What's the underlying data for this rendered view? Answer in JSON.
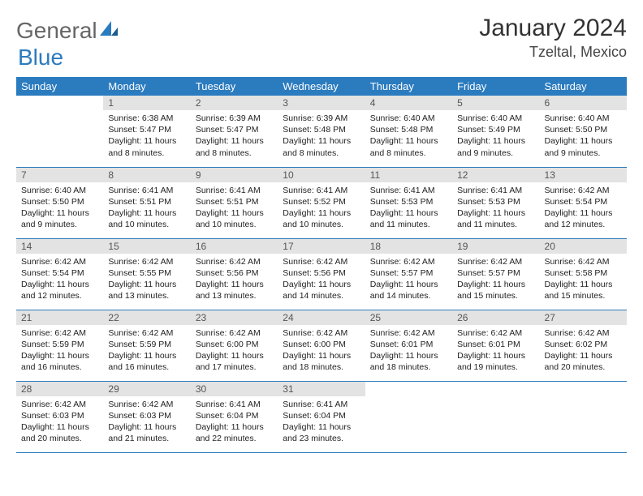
{
  "brand": {
    "part1": "General",
    "part2": "Blue"
  },
  "title": "January 2024",
  "location": "Tzeltal, Mexico",
  "colors": {
    "header_bg": "#2b7bbf",
    "header_text": "#ffffff",
    "daynum_bg": "#e3e3e3",
    "border": "#2b7bbf",
    "text": "#222222",
    "background": "#ffffff"
  },
  "layout": {
    "columns": 7,
    "rows": 5,
    "start_offset": 1
  },
  "weekdays": [
    "Sunday",
    "Monday",
    "Tuesday",
    "Wednesday",
    "Thursday",
    "Friday",
    "Saturday"
  ],
  "days": [
    {
      "n": 1,
      "sr": "6:38 AM",
      "ss": "5:47 PM",
      "dl": "11 hours and 8 minutes."
    },
    {
      "n": 2,
      "sr": "6:39 AM",
      "ss": "5:47 PM",
      "dl": "11 hours and 8 minutes."
    },
    {
      "n": 3,
      "sr": "6:39 AM",
      "ss": "5:48 PM",
      "dl": "11 hours and 8 minutes."
    },
    {
      "n": 4,
      "sr": "6:40 AM",
      "ss": "5:48 PM",
      "dl": "11 hours and 8 minutes."
    },
    {
      "n": 5,
      "sr": "6:40 AM",
      "ss": "5:49 PM",
      "dl": "11 hours and 9 minutes."
    },
    {
      "n": 6,
      "sr": "6:40 AM",
      "ss": "5:50 PM",
      "dl": "11 hours and 9 minutes."
    },
    {
      "n": 7,
      "sr": "6:40 AM",
      "ss": "5:50 PM",
      "dl": "11 hours and 9 minutes."
    },
    {
      "n": 8,
      "sr": "6:41 AM",
      "ss": "5:51 PM",
      "dl": "11 hours and 10 minutes."
    },
    {
      "n": 9,
      "sr": "6:41 AM",
      "ss": "5:51 PM",
      "dl": "11 hours and 10 minutes."
    },
    {
      "n": 10,
      "sr": "6:41 AM",
      "ss": "5:52 PM",
      "dl": "11 hours and 10 minutes."
    },
    {
      "n": 11,
      "sr": "6:41 AM",
      "ss": "5:53 PM",
      "dl": "11 hours and 11 minutes."
    },
    {
      "n": 12,
      "sr": "6:41 AM",
      "ss": "5:53 PM",
      "dl": "11 hours and 11 minutes."
    },
    {
      "n": 13,
      "sr": "6:42 AM",
      "ss": "5:54 PM",
      "dl": "11 hours and 12 minutes."
    },
    {
      "n": 14,
      "sr": "6:42 AM",
      "ss": "5:54 PM",
      "dl": "11 hours and 12 minutes."
    },
    {
      "n": 15,
      "sr": "6:42 AM",
      "ss": "5:55 PM",
      "dl": "11 hours and 13 minutes."
    },
    {
      "n": 16,
      "sr": "6:42 AM",
      "ss": "5:56 PM",
      "dl": "11 hours and 13 minutes."
    },
    {
      "n": 17,
      "sr": "6:42 AM",
      "ss": "5:56 PM",
      "dl": "11 hours and 14 minutes."
    },
    {
      "n": 18,
      "sr": "6:42 AM",
      "ss": "5:57 PM",
      "dl": "11 hours and 14 minutes."
    },
    {
      "n": 19,
      "sr": "6:42 AM",
      "ss": "5:57 PM",
      "dl": "11 hours and 15 minutes."
    },
    {
      "n": 20,
      "sr": "6:42 AM",
      "ss": "5:58 PM",
      "dl": "11 hours and 15 minutes."
    },
    {
      "n": 21,
      "sr": "6:42 AM",
      "ss": "5:59 PM",
      "dl": "11 hours and 16 minutes."
    },
    {
      "n": 22,
      "sr": "6:42 AM",
      "ss": "5:59 PM",
      "dl": "11 hours and 16 minutes."
    },
    {
      "n": 23,
      "sr": "6:42 AM",
      "ss": "6:00 PM",
      "dl": "11 hours and 17 minutes."
    },
    {
      "n": 24,
      "sr": "6:42 AM",
      "ss": "6:00 PM",
      "dl": "11 hours and 18 minutes."
    },
    {
      "n": 25,
      "sr": "6:42 AM",
      "ss": "6:01 PM",
      "dl": "11 hours and 18 minutes."
    },
    {
      "n": 26,
      "sr": "6:42 AM",
      "ss": "6:01 PM",
      "dl": "11 hours and 19 minutes."
    },
    {
      "n": 27,
      "sr": "6:42 AM",
      "ss": "6:02 PM",
      "dl": "11 hours and 20 minutes."
    },
    {
      "n": 28,
      "sr": "6:42 AM",
      "ss": "6:03 PM",
      "dl": "11 hours and 20 minutes."
    },
    {
      "n": 29,
      "sr": "6:42 AM",
      "ss": "6:03 PM",
      "dl": "11 hours and 21 minutes."
    },
    {
      "n": 30,
      "sr": "6:41 AM",
      "ss": "6:04 PM",
      "dl": "11 hours and 22 minutes."
    },
    {
      "n": 31,
      "sr": "6:41 AM",
      "ss": "6:04 PM",
      "dl": "11 hours and 23 minutes."
    }
  ],
  "labels": {
    "sunrise": "Sunrise:",
    "sunset": "Sunset:",
    "daylight": "Daylight:"
  }
}
